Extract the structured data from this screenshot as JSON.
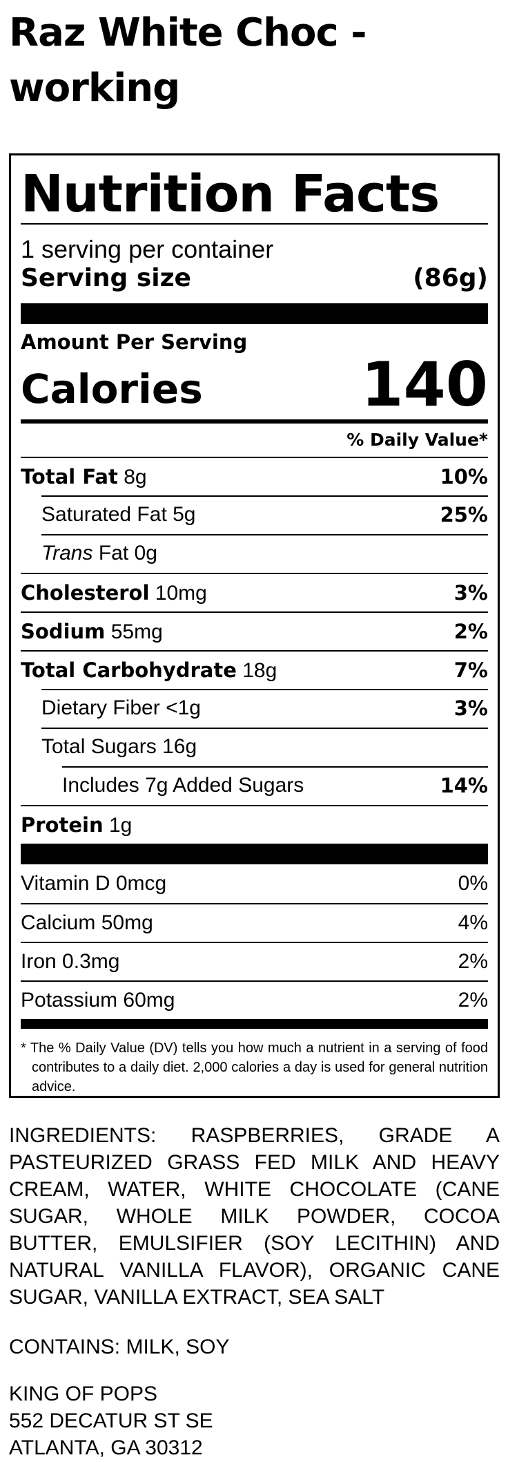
{
  "product_title": "Raz White Choc - working",
  "label": {
    "heading": "Nutrition Facts",
    "servings_per_container": "1 serving per container",
    "serving_size_label": "Serving size",
    "serving_size_value": "(86g)",
    "amount_per_serving": "Amount Per Serving",
    "calories_label": "Calories",
    "calories_value": "140",
    "daily_value_header": "% Daily Value*",
    "nutrients": [
      {
        "name": "Total Fat",
        "amount": "8g",
        "dv": "10%"
      },
      {
        "name": "Saturated Fat",
        "amount": "5g",
        "dv": "25%"
      },
      {
        "name_italic": "Trans",
        "name": "Fat",
        "amount": "0g",
        "dv": ""
      },
      {
        "name": "Cholesterol",
        "amount": "10mg",
        "dv": "3%"
      },
      {
        "name": "Sodium",
        "amount": "55mg",
        "dv": "2%"
      },
      {
        "name": "Total Carbohydrate",
        "amount": "18g",
        "dv": "7%"
      },
      {
        "name": "Dietary Fiber",
        "amount": "<1g",
        "dv": "3%"
      },
      {
        "name": "Total Sugars",
        "amount": "16g",
        "dv": ""
      },
      {
        "name": "Includes 7g Added Sugars",
        "amount": "",
        "dv": "14%"
      },
      {
        "name": "Protein",
        "amount": "1g",
        "dv": ""
      }
    ],
    "vitamins": [
      {
        "name": "Vitamin D",
        "amount": "0mcg",
        "dv": "0%"
      },
      {
        "name": "Calcium",
        "amount": "50mg",
        "dv": "4%"
      },
      {
        "name": "Iron",
        "amount": "0.3mg",
        "dv": "2%"
      },
      {
        "name": "Potassium",
        "amount": "60mg",
        "dv": "2%"
      }
    ],
    "footnote": "* The % Daily Value (DV) tells you how much a nutrient in a serving of food contributes to a daily diet. 2,000 calories a day is used for general nutrition advice."
  },
  "ingredients": "INGREDIENTS: RASPBERRIES, GRADE A PASTEURIZED GRASS FED MILK AND HEAVY CREAM, WATER, WHITE CHOCOLATE (CANE SUGAR, WHOLE MILK POWDER, COCOA BUTTER, EMULSIFIER (SOY LECITHIN) AND NATURAL VANILLA FLAVOR), ORGANIC CANE SUGAR, VANILLA EXTRACT, SEA SALT",
  "contains": "CONTAINS: MILK, SOY",
  "address": {
    "line1": "KING OF POPS",
    "line2": "552 DECATUR ST SE",
    "line3": "ATLANTA, GA 30312"
  }
}
